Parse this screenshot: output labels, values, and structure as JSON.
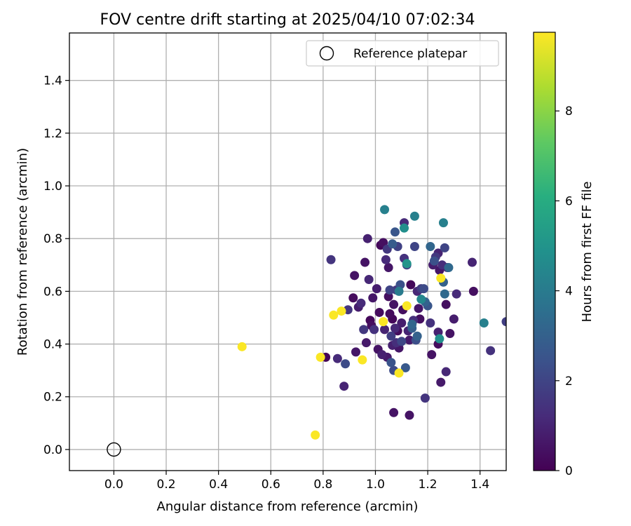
{
  "chart_data": {
    "type": "scatter",
    "title": "FOV centre drift starting at 2025/04/10 07:02:34",
    "xlabel": "Angular distance from reference (arcmin)",
    "ylabel": "Rotation from reference (arcmin)",
    "xlim": [
      -0.17,
      1.5
    ],
    "ylim": [
      -0.08,
      1.58
    ],
    "xticks": [
      "0.0",
      "0.2",
      "0.4",
      "0.6",
      "0.8",
      "1.0",
      "1.2",
      "1.4"
    ],
    "yticks": [
      "0.0",
      "0.2",
      "0.4",
      "0.6",
      "0.8",
      "1.0",
      "1.2",
      "1.4"
    ],
    "grid": true,
    "legend": {
      "position": "top-right",
      "entries": [
        "Reference platepar"
      ]
    },
    "reference_point": {
      "x": 0.0,
      "y": 0.0
    },
    "colorbar": {
      "label": "Hours from first FF file",
      "range": [
        0,
        9.75
      ],
      "ticks": [
        "0",
        "2",
        "4",
        "6",
        "8"
      ],
      "colormap": "viridis"
    },
    "points": [
      {
        "x": 0.49,
        "y": 0.39,
        "h": 9.7
      },
      {
        "x": 0.77,
        "y": 0.055,
        "h": 9.7
      },
      {
        "x": 0.79,
        "y": 0.35,
        "h": 9.7
      },
      {
        "x": 0.84,
        "y": 0.51,
        "h": 9.7
      },
      {
        "x": 0.87,
        "y": 0.525,
        "h": 9.7
      },
      {
        "x": 0.95,
        "y": 0.34,
        "h": 9.7
      },
      {
        "x": 1.03,
        "y": 0.485,
        "h": 9.7
      },
      {
        "x": 1.09,
        "y": 0.29,
        "h": 9.7
      },
      {
        "x": 1.12,
        "y": 0.545,
        "h": 9.7
      },
      {
        "x": 1.25,
        "y": 0.65,
        "h": 9.7
      },
      {
        "x": 1.035,
        "y": 0.91,
        "h": 4.2
      },
      {
        "x": 1.15,
        "y": 0.885,
        "h": 4.2
      },
      {
        "x": 1.26,
        "y": 0.86,
        "h": 4.2
      },
      {
        "x": 1.415,
        "y": 0.48,
        "h": 4.2
      },
      {
        "x": 1.245,
        "y": 0.42,
        "h": 4.8
      },
      {
        "x": 1.11,
        "y": 0.84,
        "h": 4.8
      },
      {
        "x": 1.12,
        "y": 0.705,
        "h": 5.0
      },
      {
        "x": 1.175,
        "y": 0.57,
        "h": 4.5
      },
      {
        "x": 1.09,
        "y": 0.6,
        "h": 4.0
      },
      {
        "x": 0.81,
        "y": 0.35,
        "h": 0.1
      },
      {
        "x": 0.83,
        "y": 0.72,
        "h": 1.5
      },
      {
        "x": 0.855,
        "y": 0.345,
        "h": 1.2
      },
      {
        "x": 0.88,
        "y": 0.24,
        "h": 1.0
      },
      {
        "x": 0.885,
        "y": 0.325,
        "h": 2.2
      },
      {
        "x": 0.895,
        "y": 0.53,
        "h": 1.5
      },
      {
        "x": 0.915,
        "y": 0.575,
        "h": 0.3
      },
      {
        "x": 0.92,
        "y": 0.66,
        "h": 0.5
      },
      {
        "x": 0.925,
        "y": 0.37,
        "h": 0.6
      },
      {
        "x": 0.935,
        "y": 0.54,
        "h": 0.8
      },
      {
        "x": 0.945,
        "y": 0.555,
        "h": 1.2
      },
      {
        "x": 0.955,
        "y": 0.455,
        "h": 1.6
      },
      {
        "x": 0.96,
        "y": 0.71,
        "h": 0.5
      },
      {
        "x": 0.965,
        "y": 0.405,
        "h": 0.7
      },
      {
        "x": 0.97,
        "y": 0.8,
        "h": 0.9
      },
      {
        "x": 0.975,
        "y": 0.645,
        "h": 1.1
      },
      {
        "x": 0.98,
        "y": 0.49,
        "h": 0.2
      },
      {
        "x": 0.985,
        "y": 0.47,
        "h": 0.4
      },
      {
        "x": 0.99,
        "y": 0.575,
        "h": 0.6
      },
      {
        "x": 0.995,
        "y": 0.455,
        "h": 1.4
      },
      {
        "x": 1.005,
        "y": 0.61,
        "h": 0.8
      },
      {
        "x": 1.01,
        "y": 0.38,
        "h": 0.5
      },
      {
        "x": 1.015,
        "y": 0.52,
        "h": 0.3
      },
      {
        "x": 1.02,
        "y": 0.775,
        "h": 0.2
      },
      {
        "x": 1.025,
        "y": 0.36,
        "h": 0.9
      },
      {
        "x": 1.03,
        "y": 0.785,
        "h": 0.4
      },
      {
        "x": 1.035,
        "y": 0.455,
        "h": 1.0
      },
      {
        "x": 1.04,
        "y": 0.72,
        "h": 1.2
      },
      {
        "x": 1.045,
        "y": 0.35,
        "h": 0.7
      },
      {
        "x": 1.045,
        "y": 0.76,
        "h": 1.6
      },
      {
        "x": 1.05,
        "y": 0.58,
        "h": 0.4
      },
      {
        "x": 1.05,
        "y": 0.69,
        "h": 0.6
      },
      {
        "x": 1.055,
        "y": 0.515,
        "h": 0.3
      },
      {
        "x": 1.055,
        "y": 0.605,
        "h": 2.0
      },
      {
        "x": 1.06,
        "y": 0.33,
        "h": 2.5
      },
      {
        "x": 1.06,
        "y": 0.43,
        "h": 1.8
      },
      {
        "x": 1.065,
        "y": 0.78,
        "h": 2.8
      },
      {
        "x": 1.065,
        "y": 0.495,
        "h": 0.2
      },
      {
        "x": 1.065,
        "y": 0.395,
        "h": 0.9
      },
      {
        "x": 1.07,
        "y": 0.55,
        "h": 0.5
      },
      {
        "x": 1.07,
        "y": 0.3,
        "h": 2.2
      },
      {
        "x": 1.07,
        "y": 0.14,
        "h": 0.5
      },
      {
        "x": 1.075,
        "y": 0.825,
        "h": 2.6
      },
      {
        "x": 1.075,
        "y": 0.46,
        "h": 1.1
      },
      {
        "x": 1.08,
        "y": 0.605,
        "h": 1.5
      },
      {
        "x": 1.08,
        "y": 0.405,
        "h": 1.3
      },
      {
        "x": 1.085,
        "y": 0.77,
        "h": 1.9
      },
      {
        "x": 1.085,
        "y": 0.45,
        "h": 0.3
      },
      {
        "x": 1.09,
        "y": 0.385,
        "h": 0.6
      },
      {
        "x": 1.095,
        "y": 0.625,
        "h": 2.4
      },
      {
        "x": 1.1,
        "y": 0.48,
        "h": 0.8
      },
      {
        "x": 1.1,
        "y": 0.41,
        "h": 2.1
      },
      {
        "x": 1.105,
        "y": 0.53,
        "h": 0.4
      },
      {
        "x": 1.11,
        "y": 0.725,
        "h": 1.4
      },
      {
        "x": 1.11,
        "y": 0.86,
        "h": 1.2
      },
      {
        "x": 1.115,
        "y": 0.31,
        "h": 2.7
      },
      {
        "x": 1.12,
        "y": 0.7,
        "h": 1.8
      },
      {
        "x": 1.125,
        "y": 0.45,
        "h": 1.0
      },
      {
        "x": 1.13,
        "y": 0.415,
        "h": 0.7
      },
      {
        "x": 1.13,
        "y": 0.13,
        "h": 0.5
      },
      {
        "x": 1.135,
        "y": 0.625,
        "h": 0.2
      },
      {
        "x": 1.14,
        "y": 0.46,
        "h": 2.9
      },
      {
        "x": 1.14,
        "y": 0.475,
        "h": 3.2
      },
      {
        "x": 1.145,
        "y": 0.49,
        "h": 1.3
      },
      {
        "x": 1.15,
        "y": 0.77,
        "h": 2.0
      },
      {
        "x": 1.155,
        "y": 0.415,
        "h": 2.3
      },
      {
        "x": 1.16,
        "y": 0.6,
        "h": 1.1
      },
      {
        "x": 1.16,
        "y": 0.43,
        "h": 3.0
      },
      {
        "x": 1.165,
        "y": 0.535,
        "h": 0.6
      },
      {
        "x": 1.17,
        "y": 0.495,
        "h": 0.4
      },
      {
        "x": 1.175,
        "y": 0.61,
        "h": 1.7
      },
      {
        "x": 1.185,
        "y": 0.61,
        "h": 2.2
      },
      {
        "x": 1.19,
        "y": 0.195,
        "h": 1.5
      },
      {
        "x": 1.19,
        "y": 0.56,
        "h": 3.1
      },
      {
        "x": 1.2,
        "y": 0.545,
        "h": 2.6
      },
      {
        "x": 1.21,
        "y": 0.77,
        "h": 3.2
      },
      {
        "x": 1.21,
        "y": 0.48,
        "h": 1.4
      },
      {
        "x": 1.215,
        "y": 0.36,
        "h": 0.5
      },
      {
        "x": 1.22,
        "y": 0.7,
        "h": 0.8
      },
      {
        "x": 1.225,
        "y": 0.715,
        "h": 2.4
      },
      {
        "x": 1.23,
        "y": 0.73,
        "h": 1.6
      },
      {
        "x": 1.24,
        "y": 0.745,
        "h": 1.0
      },
      {
        "x": 1.24,
        "y": 0.445,
        "h": 0.9
      },
      {
        "x": 1.24,
        "y": 0.4,
        "h": 0.3
      },
      {
        "x": 1.245,
        "y": 0.68,
        "h": 0.6
      },
      {
        "x": 1.25,
        "y": 0.255,
        "h": 0.7
      },
      {
        "x": 1.255,
        "y": 0.7,
        "h": 1.3
      },
      {
        "x": 1.26,
        "y": 0.635,
        "h": 3.0
      },
      {
        "x": 1.265,
        "y": 0.765,
        "h": 2.0
      },
      {
        "x": 1.265,
        "y": 0.59,
        "h": 3.3
      },
      {
        "x": 1.27,
        "y": 0.55,
        "h": 0.4
      },
      {
        "x": 1.27,
        "y": 0.295,
        "h": 1.1
      },
      {
        "x": 1.275,
        "y": 0.69,
        "h": 0.9
      },
      {
        "x": 1.28,
        "y": 0.69,
        "h": 3.3
      },
      {
        "x": 1.285,
        "y": 0.44,
        "h": 0.5
      },
      {
        "x": 1.3,
        "y": 0.495,
        "h": 0.8
      },
      {
        "x": 1.31,
        "y": 0.59,
        "h": 1.2
      },
      {
        "x": 1.37,
        "y": 0.71,
        "h": 1.0
      },
      {
        "x": 1.375,
        "y": 0.6,
        "h": 0.4
      },
      {
        "x": 1.44,
        "y": 0.375,
        "h": 1.4
      },
      {
        "x": 1.5,
        "y": 0.485,
        "h": 1.8
      }
    ]
  }
}
